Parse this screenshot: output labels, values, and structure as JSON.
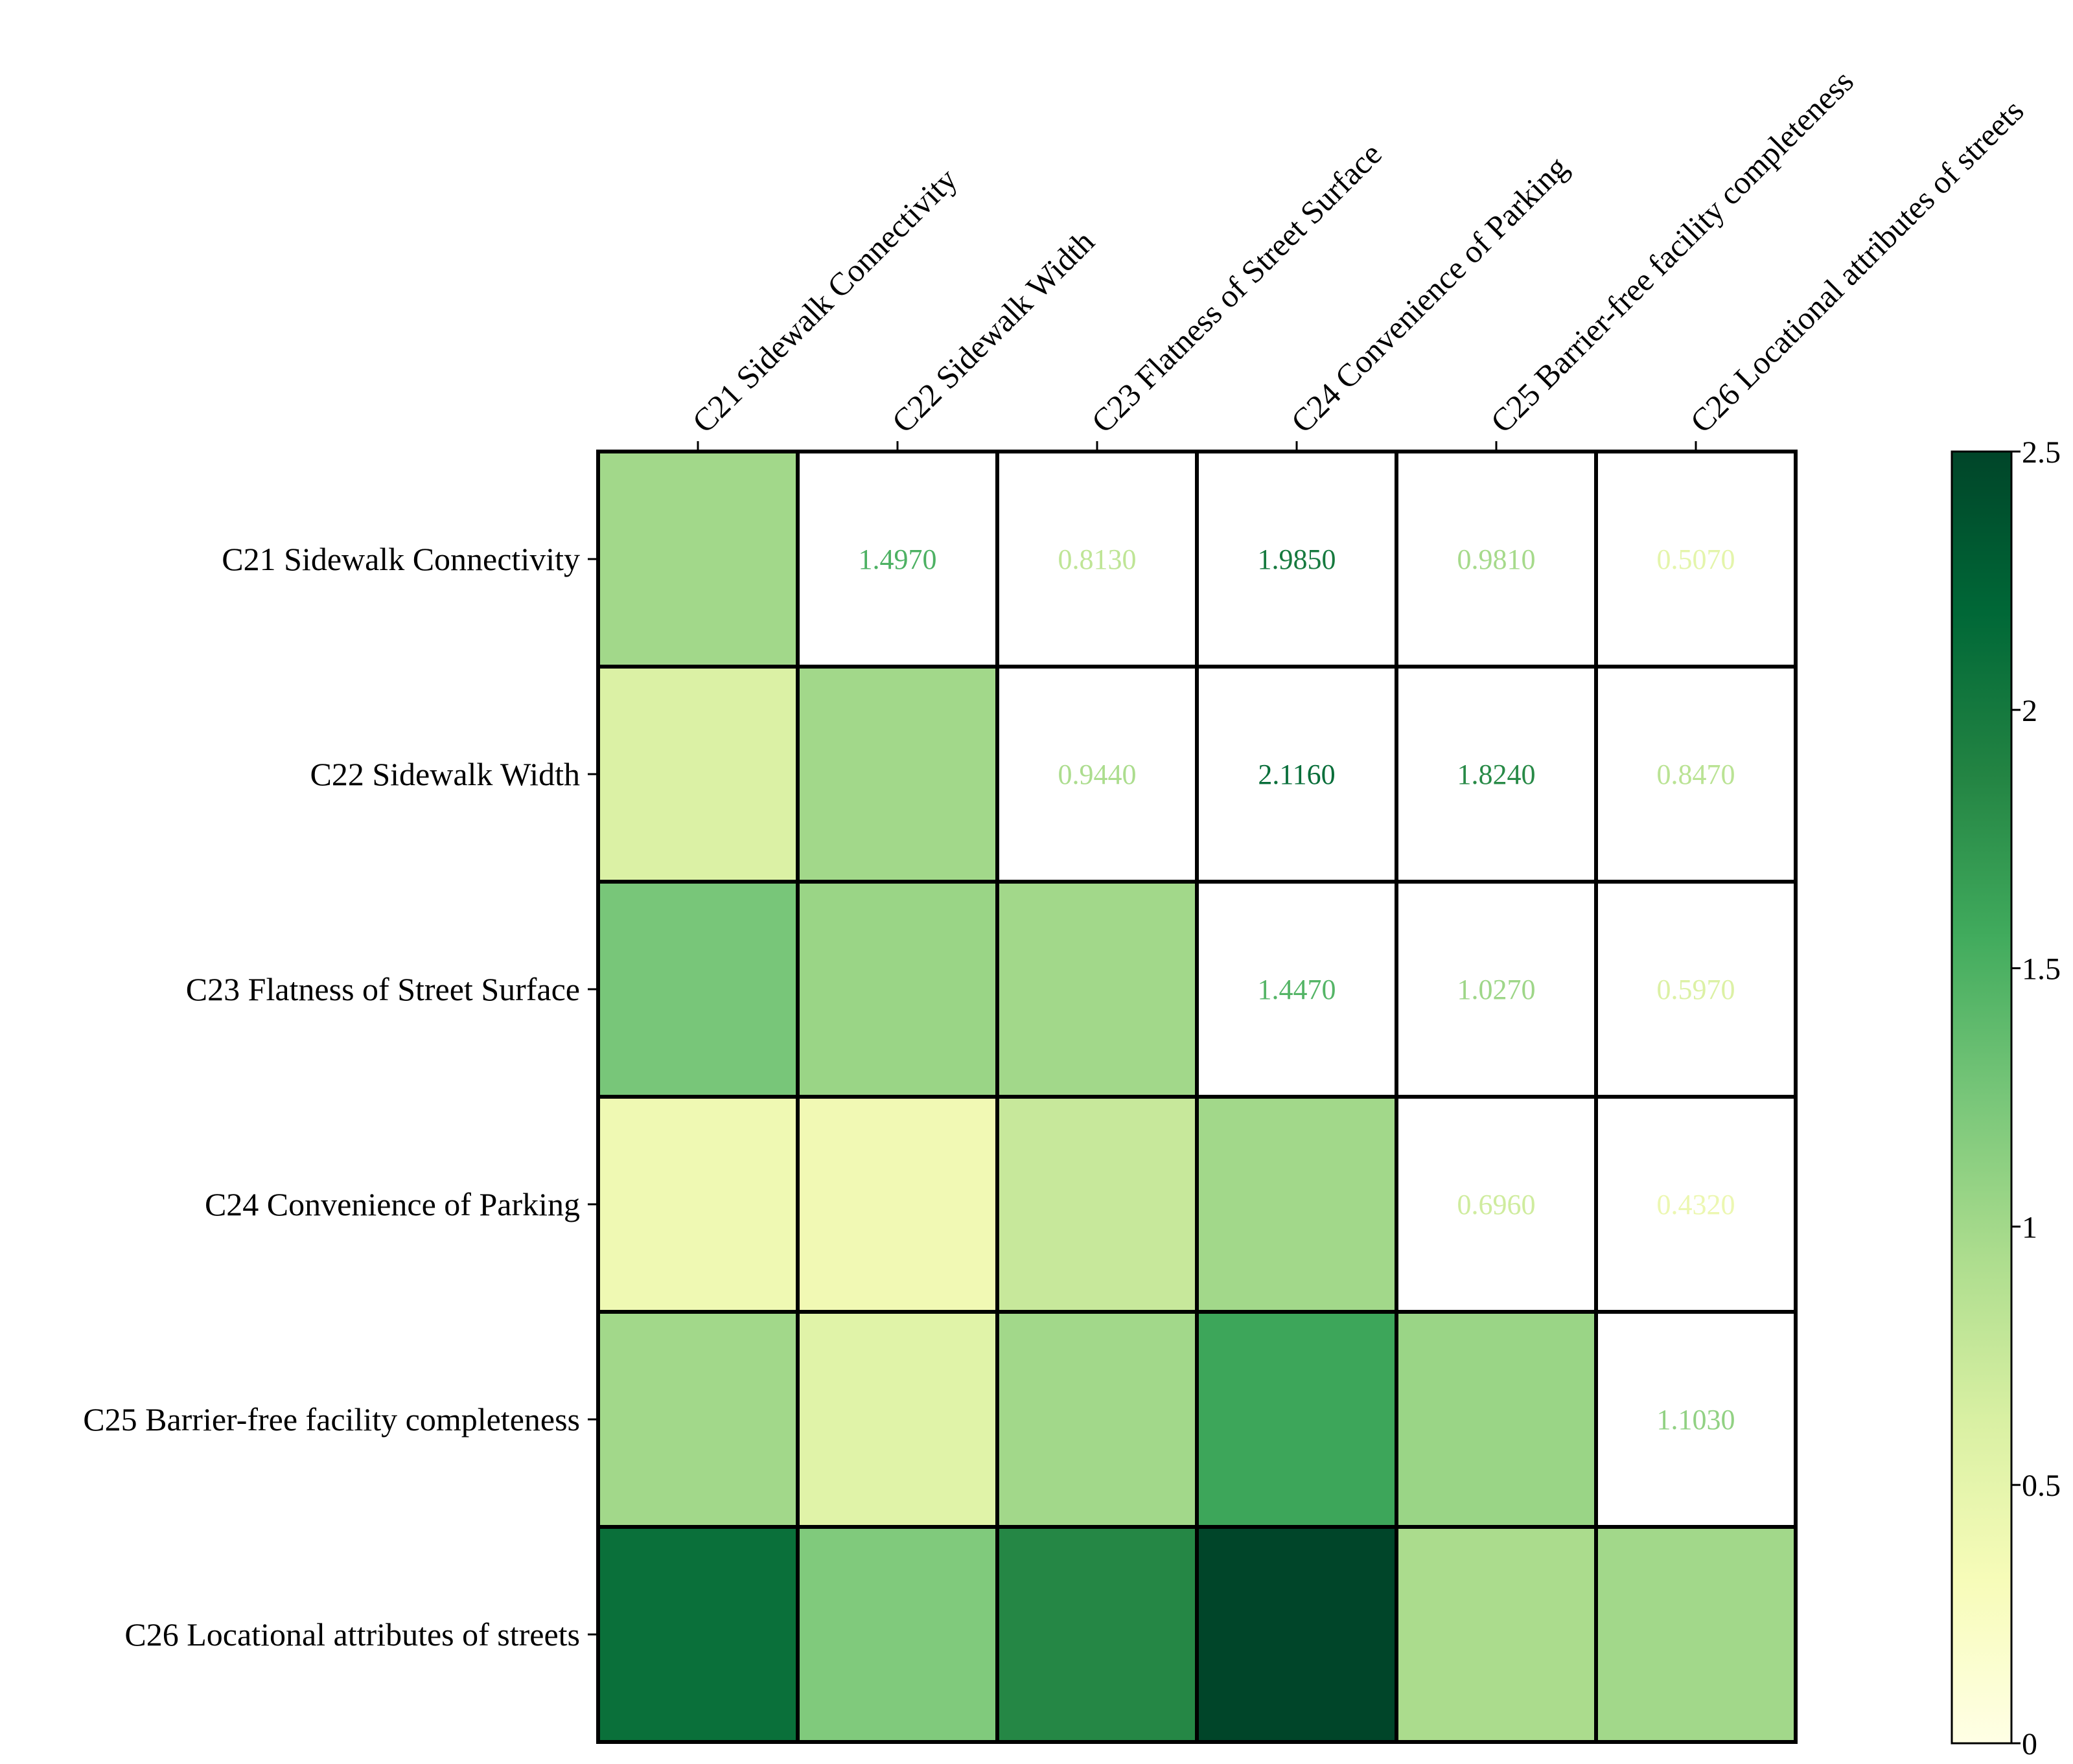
{
  "chart_data": {
    "type": "heatmap",
    "title": "",
    "columns": [
      "C21 Sidewalk Connectivity",
      "C22 Sidewalk Width",
      "C23 Flatness of Street Surface",
      "C24 Convenience of Parking",
      "C25 Barrier-free facility completeness",
      "C26 Locational attributes of streets"
    ],
    "rows": [
      "C21 Sidewalk Connectivity",
      "C22 Sidewalk Width",
      "C23 Flatness of Street Surface",
      "C24 Convenience of Parking",
      "C25 Barrier-free facility completeness",
      "C26 Locational attributes of streets"
    ],
    "upper_triangle": [
      {
        "row": 0,
        "col": 1,
        "value": 1.497,
        "label": "1.4970"
      },
      {
        "row": 0,
        "col": 2,
        "value": 0.813,
        "label": "0.8130"
      },
      {
        "row": 0,
        "col": 3,
        "value": 1.985,
        "label": "1.9850"
      },
      {
        "row": 0,
        "col": 4,
        "value": 0.981,
        "label": "0.9810"
      },
      {
        "row": 0,
        "col": 5,
        "value": 0.507,
        "label": "0.5070"
      },
      {
        "row": 1,
        "col": 2,
        "value": 0.944,
        "label": "0.9440"
      },
      {
        "row": 1,
        "col": 3,
        "value": 2.116,
        "label": "2.1160"
      },
      {
        "row": 1,
        "col": 4,
        "value": 1.824,
        "label": "1.8240"
      },
      {
        "row": 1,
        "col": 5,
        "value": 0.847,
        "label": "0.8470"
      },
      {
        "row": 2,
        "col": 3,
        "value": 1.447,
        "label": "1.4470"
      },
      {
        "row": 2,
        "col": 4,
        "value": 1.027,
        "label": "1.0270"
      },
      {
        "row": 2,
        "col": 5,
        "value": 0.597,
        "label": "0.5970"
      },
      {
        "row": 3,
        "col": 4,
        "value": 0.696,
        "label": "0.6960"
      },
      {
        "row": 3,
        "col": 5,
        "value": 0.432,
        "label": "0.4320"
      },
      {
        "row": 4,
        "col": 5,
        "value": 1.103,
        "label": "1.1030"
      }
    ],
    "lower_triangle": [
      {
        "row": 0,
        "col": 0,
        "value": 1.0
      },
      {
        "row": 1,
        "col": 0,
        "value": 0.6
      },
      {
        "row": 1,
        "col": 1,
        "value": 1.0
      },
      {
        "row": 2,
        "col": 0,
        "value": 1.25
      },
      {
        "row": 2,
        "col": 1,
        "value": 1.05
      },
      {
        "row": 2,
        "col": 2,
        "value": 1.0
      },
      {
        "row": 3,
        "col": 0,
        "value": 0.4
      },
      {
        "row": 3,
        "col": 1,
        "value": 0.38
      },
      {
        "row": 3,
        "col": 2,
        "value": 0.75
      },
      {
        "row": 3,
        "col": 3,
        "value": 1.0
      },
      {
        "row": 4,
        "col": 0,
        "value": 1.0
      },
      {
        "row": 4,
        "col": 1,
        "value": 0.55
      },
      {
        "row": 4,
        "col": 2,
        "value": 1.0
      },
      {
        "row": 4,
        "col": 3,
        "value": 1.6
      },
      {
        "row": 4,
        "col": 4,
        "value": 1.05
      },
      {
        "row": 5,
        "col": 0,
        "value": 2.1
      },
      {
        "row": 5,
        "col": 1,
        "value": 1.2
      },
      {
        "row": 5,
        "col": 2,
        "value": 1.85
      },
      {
        "row": 5,
        "col": 3,
        "value": 2.5
      },
      {
        "row": 5,
        "col": 4,
        "value": 0.95
      },
      {
        "row": 5,
        "col": 5,
        "value": 1.0
      }
    ],
    "colorbar": {
      "min": 0,
      "max": 2.5,
      "ticks": [
        0,
        0.5,
        1,
        1.5,
        2,
        2.5
      ],
      "tick_labels": [
        "0",
        "0.5",
        "1",
        "1.5",
        "2",
        "2.5"
      ],
      "colormap": "YlGn",
      "stops": [
        "#ffffe5",
        "#f7fcb9",
        "#d9f0a3",
        "#addd8e",
        "#78c679",
        "#41ab5d",
        "#238443",
        "#006837",
        "#004529"
      ]
    },
    "grid_line_color": "#000000",
    "upper_cell_color": "#ffffff",
    "xlabel": "",
    "ylabel": ""
  }
}
